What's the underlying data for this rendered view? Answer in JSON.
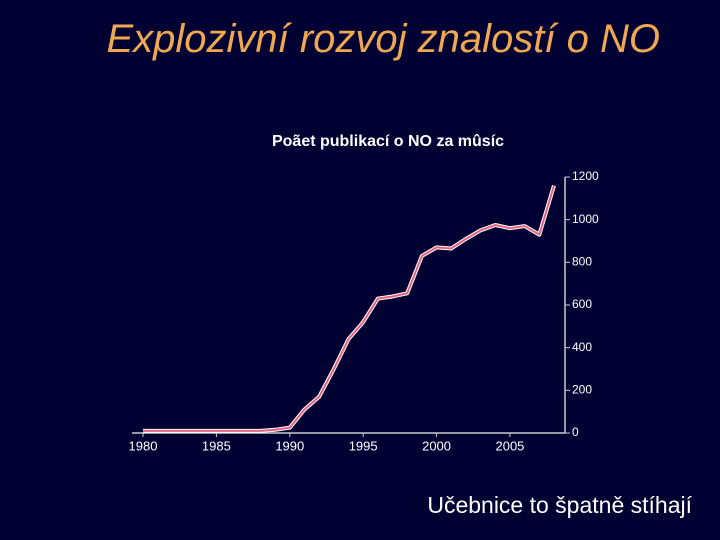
{
  "title": "Explozivní rozvoj znalostí o NO",
  "footer": "Učebnice to špatně stíhají",
  "chart_data": {
    "type": "line",
    "title": "Poãet publikací o NO za mûsíc",
    "x": [
      1980,
      1981,
      1982,
      1983,
      1984,
      1985,
      1986,
      1987,
      1988,
      1989,
      1990,
      1991,
      1992,
      1993,
      1994,
      1995,
      1996,
      1997,
      1998,
      1999,
      2000,
      2001,
      2002,
      2003,
      2004,
      2005,
      2006,
      2007,
      2008
    ],
    "values": [
      10,
      10,
      10,
      10,
      10,
      10,
      10,
      10,
      10,
      15,
      25,
      110,
      170,
      300,
      440,
      520,
      630,
      640,
      655,
      830,
      870,
      865,
      910,
      950,
      975,
      960,
      970,
      930,
      1160
    ],
    "color": "#e8607e",
    "xlim": [
      1979.25,
      2008.75
    ],
    "xticks": [
      1980,
      1985,
      1990,
      1995,
      2000,
      2005
    ],
    "ylim": [
      0,
      1200
    ],
    "yticks": [
      0,
      200,
      400,
      600,
      800,
      1000,
      1200
    ]
  }
}
